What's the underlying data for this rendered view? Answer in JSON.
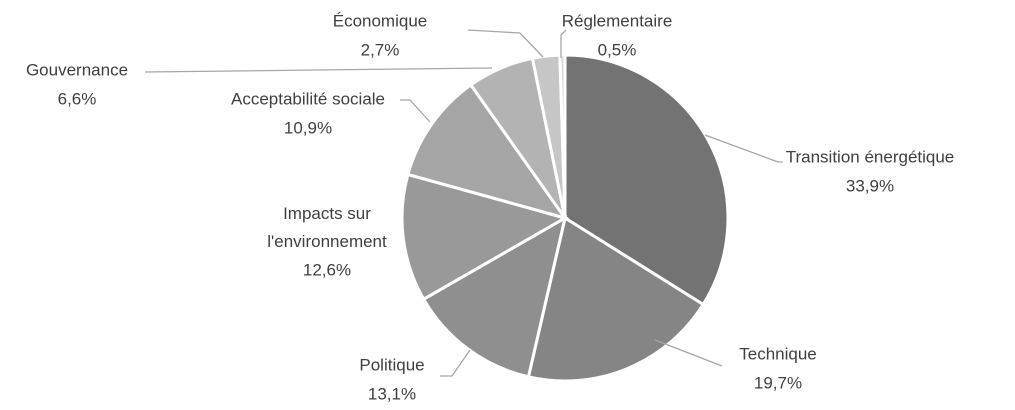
{
  "chart_data": {
    "type": "pie",
    "categories": [
      "Transition énergétique",
      "Technique",
      "Politique",
      "Impacts sur l'environnement",
      "Acceptabilité sociale",
      "Gouvernance",
      "Économique",
      "Réglementaire"
    ],
    "values": [
      33.9,
      19.7,
      13.1,
      12.6,
      10.9,
      6.6,
      2.7,
      0.5
    ],
    "value_labels": [
      "33,9%",
      "19,7%",
      "13,1%",
      "12,6%",
      "10,9%",
      "6,6%",
      "2,7%",
      "0,5%"
    ],
    "colors": [
      "#737373",
      "#858585",
      "#8f8f8f",
      "#999999",
      "#a5a5a5",
      "#b3b3b3",
      "#c6c6c6",
      "#d8d8d8"
    ]
  }
}
